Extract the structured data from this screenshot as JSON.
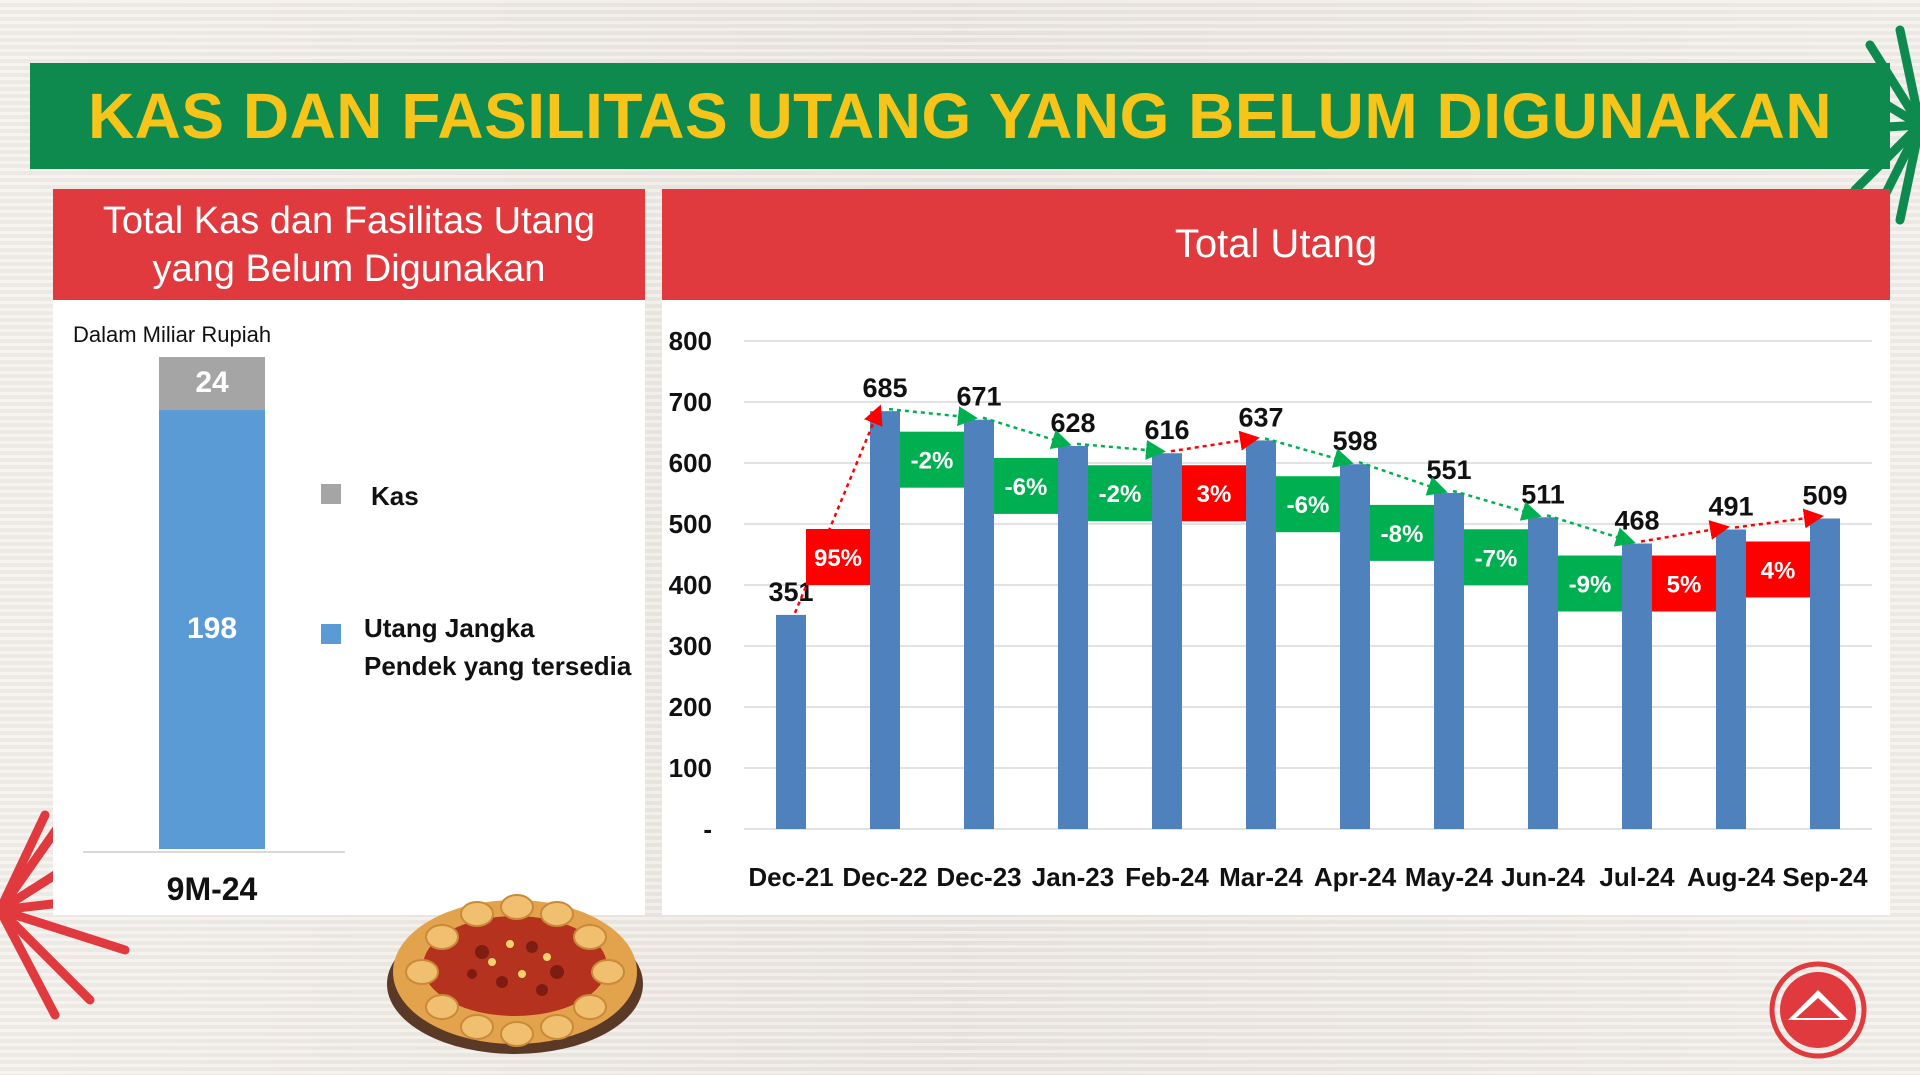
{
  "slide": {
    "title": "KAS DAN FASILITAS UTANG YANG BELUM DIGUNAKAN",
    "colors": {
      "green": "#0e8a4f",
      "red": "#e03a3e",
      "yellow": "#f7c51a",
      "bar_blue": "#5b9bd5",
      "cash_gray": "#a5a5a5"
    }
  },
  "left_panel": {
    "title": "Total Kas dan Fasilitas Utang yang Belum Digunakan",
    "unit_note": "Dalam Miliar Rupiah",
    "legend": [
      {
        "label": "Kas",
        "color": "#a5a5a5"
      },
      {
        "label": "Utang Jangka Pendek yang tersedia",
        "color": "#5b9bd5"
      }
    ]
  },
  "right_panel": {
    "title": "Total Utang"
  },
  "chart_data": [
    {
      "type": "bar",
      "stacked": true,
      "title": "Total Kas dan Fasilitas Utang yang Belum Digunakan",
      "categories": [
        "9M-24"
      ],
      "series": [
        {
          "name": "Utang Jangka Pendek yang tersedia",
          "values": [
            198
          ],
          "color": "#5b9bd5"
        },
        {
          "name": "Kas",
          "values": [
            24
          ],
          "color": "#a5a5a5"
        }
      ]
    },
    {
      "type": "bar",
      "title": "Total Utang",
      "categories": [
        "Dec-21",
        "Dec-22",
        "Dec-23",
        "Jan-23",
        "Feb-24",
        "Mar-24",
        "Apr-24",
        "May-24",
        "Jun-24",
        "Jul-24",
        "Aug-24",
        "Sep-24"
      ],
      "values": [
        351,
        685,
        671,
        628,
        616,
        637,
        598,
        551,
        511,
        468,
        491,
        509
      ],
      "ylim": [
        0,
        800
      ],
      "yticks": [
        "-",
        "100",
        "200",
        "300",
        "400",
        "500",
        "600",
        "700",
        "800"
      ],
      "grid": true,
      "bar_color": "#4f81bd",
      "changes": [
        {
          "label": "95%",
          "direction": "up"
        },
        {
          "label": "-2%",
          "direction": "down"
        },
        {
          "label": "-6%",
          "direction": "down"
        },
        {
          "label": "-2%",
          "direction": "down"
        },
        {
          "label": "3%",
          "direction": "up"
        },
        {
          "label": "-6%",
          "direction": "down"
        },
        {
          "label": "-8%",
          "direction": "down"
        },
        {
          "label": "-7%",
          "direction": "down"
        },
        {
          "label": "-9%",
          "direction": "down"
        },
        {
          "label": "5%",
          "direction": "up"
        },
        {
          "label": "4%",
          "direction": "up"
        }
      ],
      "up_color": "#ff0000",
      "down_color": "#00b050"
    }
  ]
}
